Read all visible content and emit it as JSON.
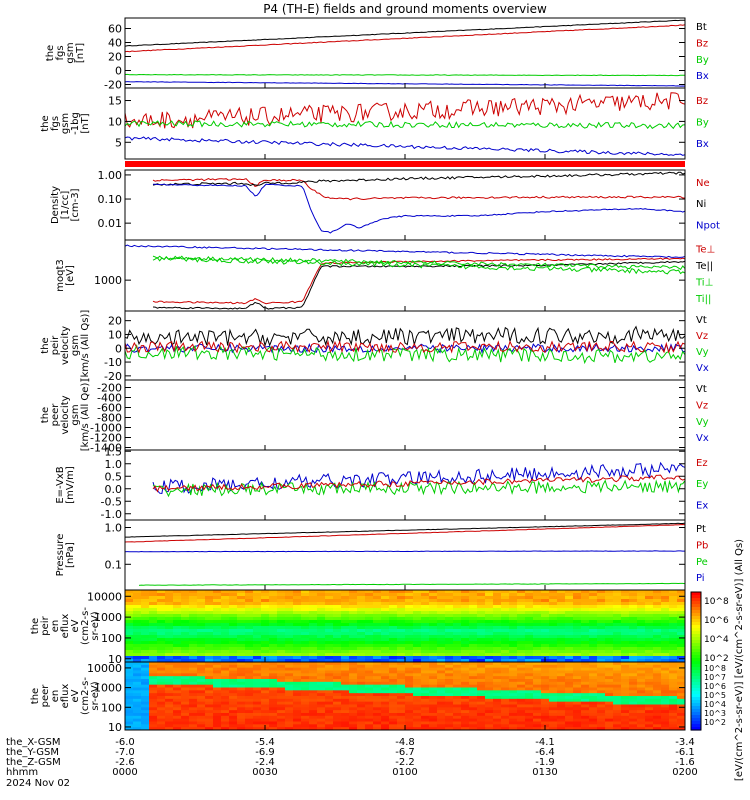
{
  "title": "P4 (TH-E) fields and ground moments overview",
  "chart_data": [
    {
      "type": "line",
      "ylabel_lines": [
        "the",
        "fgs",
        "gsm",
        "[nT]"
      ],
      "ylim": [
        -25,
        75
      ],
      "log": false,
      "yticks": [
        -20,
        0,
        20,
        40,
        60
      ],
      "legend": [
        "Bt",
        "Bz",
        "By",
        "Bx"
      ],
      "legend_colors": [
        "#000000",
        "#cc0000",
        "#00cc00",
        "#0000cc"
      ],
      "series": [
        {
          "name": "Bt",
          "color": "#000000",
          "x_start_hhmm": "0000",
          "x_end_hhmm": "0200",
          "start": 35,
          "end": 72,
          "noise": 0.4
        },
        {
          "name": "Bz",
          "color": "#cc0000",
          "x_start_hhmm": "0000",
          "x_end_hhmm": "0200",
          "start": 27,
          "end": 65,
          "noise": 0.5
        },
        {
          "name": "By",
          "color": "#00cc00",
          "x_start_hhmm": "0000",
          "x_end_hhmm": "0200",
          "start": -6,
          "end": -7,
          "noise": 0.4
        },
        {
          "name": "Bx",
          "color": "#0000cc",
          "x_start_hhmm": "0000",
          "x_end_hhmm": "0200",
          "start": -16,
          "end": -22,
          "noise": 0.3
        }
      ]
    },
    {
      "type": "line",
      "ylabel_lines": [
        "the",
        "fgs",
        "gsm",
        "-1bg",
        "[nT]"
      ],
      "ylim": [
        1,
        18
      ],
      "log": false,
      "yticks": [
        5,
        10,
        15
      ],
      "legend": [
        "Bz",
        "By",
        "Bx"
      ],
      "legend_colors": [
        "#cc0000",
        "#00cc00",
        "#0000cc"
      ],
      "series": [
        {
          "name": "Bz",
          "color": "#cc0000",
          "x_start_hhmm": "0000",
          "x_end_hhmm": "0200",
          "start": 10,
          "end": 15,
          "noise": 2.2
        },
        {
          "name": "By",
          "color": "#00cc00",
          "x_start_hhmm": "0000",
          "x_end_hhmm": "0200",
          "start": 9.5,
          "end": 9,
          "noise": 0.7
        },
        {
          "name": "Bx",
          "color": "#0000cc",
          "x_start_hhmm": "0000",
          "x_end_hhmm": "0200",
          "start": 6,
          "end": 2,
          "noise": 0.4
        }
      ]
    },
    {
      "type": "line",
      "ylabel_lines": [
        "Density",
        "[1/cc]",
        "[cm-3]"
      ],
      "ylim": [
        0.002,
        1.6
      ],
      "log": true,
      "yticks": [
        0.01,
        0.1,
        1.0
      ],
      "ytick_labels": [
        "0.01",
        "0.10",
        "1.00"
      ],
      "legend": [
        "Ne",
        "Ni",
        "Npot"
      ],
      "legend_colors": [
        "#cc0000",
        "#000000",
        "#0000cc"
      ],
      "series": [
        {
          "name": "Ne",
          "color": "#cc0000",
          "points": [
            [
              "0006",
              0.6
            ],
            [
              "0020",
              0.65
            ],
            [
              "0026",
              0.65
            ],
            [
              "0028",
              0.35
            ],
            [
              "0030",
              0.6
            ],
            [
              "0038",
              0.6
            ],
            [
              "0040",
              0.25
            ],
            [
              "0043",
              0.12
            ],
            [
              "0046",
              0.1
            ],
            [
              "0100",
              0.11
            ],
            [
              "0130",
              0.12
            ],
            [
              "0200",
              0.12
            ]
          ],
          "noise": 0.08
        },
        {
          "name": "Ni",
          "color": "#000000",
          "points": [
            [
              "0006",
              0.4
            ],
            [
              "0026",
              0.45
            ],
            [
              "0028",
              0.35
            ],
            [
              "0030",
              0.45
            ],
            [
              "0038",
              0.5
            ],
            [
              "0042",
              0.55
            ],
            [
              "0100",
              0.7
            ],
            [
              "0130",
              0.9
            ],
            [
              "0200",
              1.2
            ]
          ],
          "noise": 0.1
        },
        {
          "name": "Npot",
          "color": "#0000cc",
          "points": [
            [
              "0006",
              0.4
            ],
            [
              "0026",
              0.35
            ],
            [
              "0028",
              0.12
            ],
            [
              "0030",
              0.4
            ],
            [
              "0038",
              0.35
            ],
            [
              "0040",
              0.03
            ],
            [
              "0042",
              0.005
            ],
            [
              "0044",
              0.004
            ],
            [
              "0048",
              0.01
            ],
            [
              "0050",
              0.006
            ],
            [
              "0055",
              0.015
            ],
            [
              "0100",
              0.02
            ],
            [
              "0115",
              0.02
            ],
            [
              "0130",
              0.03
            ],
            [
              "0150",
              0.04
            ],
            [
              "0200",
              0.03
            ]
          ],
          "noise": 0.05
        }
      ]
    },
    {
      "type": "line",
      "ylabel_lines": [
        "moqt3",
        "[eV]"
      ],
      "ylim": [
        100,
        20000
      ],
      "log": true,
      "yticks": [
        1000
      ],
      "ytick_labels": [
        "1000"
      ],
      "legend": [
        "Te⊥",
        "Te||",
        "Ti⊥",
        "Ti||"
      ],
      "legend_colors": [
        "#cc0000",
        "#000000",
        "#00cc00",
        "#00cc00"
      ],
      "series": [
        {
          "name": "Te⊥",
          "color": "#cc0000",
          "points": [
            [
              "0006",
              200
            ],
            [
              "0026",
              180
            ],
            [
              "0028",
              250
            ],
            [
              "0030",
              180
            ],
            [
              "0038",
              200
            ],
            [
              "0042",
              3500
            ],
            [
              "0100",
              4000
            ],
            [
              "0130",
              4500
            ],
            [
              "0200",
              5000
            ]
          ],
          "noise": 0.05
        },
        {
          "name": "Te||",
          "color": "#000000",
          "points": [
            [
              "0006",
              130
            ],
            [
              "0026",
              120
            ],
            [
              "0028",
              200
            ],
            [
              "0030",
              120
            ],
            [
              "0038",
              130
            ],
            [
              "0042",
              2800
            ],
            [
              "0100",
              2800
            ],
            [
              "0130",
              3000
            ],
            [
              "0200",
              4000
            ]
          ],
          "noise": 0.05
        },
        {
          "name": "Ti⊥",
          "color": "#00cc00",
          "x_start_hhmm": "0006",
          "x_end_hhmm": "0200",
          "start": 5500,
          "end": 2500,
          "noise": 0.12
        },
        {
          "name": "Ti||",
          "color": "#00cc00",
          "x_start_hhmm": "0006",
          "x_end_hhmm": "0200",
          "start": 5000,
          "end": 1800,
          "noise": 0.15
        },
        {
          "name": "Npot",
          "color": "#0000cc",
          "x_start_hhmm": "0000",
          "x_end_hhmm": "0200",
          "start": 13000,
          "end": 5500,
          "noise": 0.05
        }
      ]
    },
    {
      "type": "line",
      "ylabel_lines": [
        "the",
        "peir",
        "velocity",
        "gsm",
        "[km/s (All Qs)]"
      ],
      "ylim": [
        -23,
        27
      ],
      "log": false,
      "yticks": [
        -20,
        -10,
        0,
        10,
        20
      ],
      "legend": [
        "Vt",
        "Vz",
        "Vy",
        "Vx"
      ],
      "legend_colors": [
        "#000000",
        "#cc0000",
        "#00cc00",
        "#0000cc"
      ],
      "series": [
        {
          "name": "Vt",
          "color": "#000000",
          "x_start_hhmm": "0000",
          "x_end_hhmm": "0200",
          "start": 7,
          "end": 10,
          "noise": 6
        },
        {
          "name": "Vx",
          "color": "#0000cc",
          "x_start_hhmm": "0000",
          "x_end_hhmm": "0200",
          "start": 0,
          "end": 0,
          "noise": 3
        },
        {
          "name": "Vy",
          "color": "#00cc00",
          "x_start_hhmm": "0000",
          "x_end_hhmm": "0200",
          "start": -3,
          "end": -6,
          "noise": 5
        },
        {
          "name": "Vz",
          "color": "#cc0000",
          "x_start_hhmm": "0000",
          "x_end_hhmm": "0200",
          "start": 1,
          "end": 1,
          "noise": 4
        }
      ]
    },
    {
      "type": "line",
      "ylabel_lines": [
        "the",
        "peer",
        "velocity",
        "gsm",
        "[km/s (All Qe)]"
      ],
      "ylim": [
        -1450,
        -50
      ],
      "log": false,
      "yticks": [
        -1400,
        -1200,
        -1000,
        -800,
        -600,
        -400,
        -200
      ],
      "legend": [
        "Vt",
        "Vz",
        "Vy",
        "Vx"
      ],
      "legend_colors": [
        "#000000",
        "#cc0000",
        "#00cc00",
        "#0000cc"
      ],
      "series": []
    },
    {
      "type": "line",
      "ylabel_lines": [
        "E=-VxB",
        "[mV/m]"
      ],
      "ylim": [
        -1.25,
        1.55
      ],
      "log": false,
      "yticks": [
        -1.0,
        -0.5,
        0.0,
        0.5,
        1.0,
        1.5
      ],
      "ytick_labels": [
        "-1.0",
        "-0.5",
        "0.0",
        "0.5",
        "1.0",
        "1.5"
      ],
      "legend": [
        "Ez",
        "Ey",
        "Ex"
      ],
      "legend_colors": [
        "#cc0000",
        "#00cc00",
        "#0000cc"
      ],
      "series": [
        {
          "name": "Ex",
          "color": "#0000cc",
          "x_start_hhmm": "0006",
          "x_end_hhmm": "0200",
          "start": 0.05,
          "end": 0.8,
          "noise": 0.3
        },
        {
          "name": "Ey",
          "color": "#00cc00",
          "x_start_hhmm": "0006",
          "x_end_hhmm": "0200",
          "start": -0.05,
          "end": 0.1,
          "noise": 0.25
        },
        {
          "name": "Ez",
          "color": "#cc0000",
          "x_start_hhmm": "0006",
          "x_end_hhmm": "0200",
          "start": 0.0,
          "end": 0.45,
          "noise": 0.12
        }
      ]
    },
    {
      "type": "line",
      "ylabel_lines": [
        "Pressure",
        "[nPa]"
      ],
      "ylim": [
        0.02,
        1.6
      ],
      "log": true,
      "yticks": [
        0.1,
        1.0
      ],
      "ytick_labels": [
        "0.1",
        "1.0"
      ],
      "legend": [
        "Pt",
        "Pb",
        "Pe",
        "Pi"
      ],
      "legend_colors": [
        "#000000",
        "#cc0000",
        "#00cc00",
        "#0000cc"
      ],
      "series": [
        {
          "name": "Pt",
          "color": "#000000",
          "x_start_hhmm": "0000",
          "x_end_hhmm": "0200",
          "start": 0.55,
          "end": 1.3,
          "noise": 0.01
        },
        {
          "name": "Pb",
          "color": "#cc0000",
          "x_start_hhmm": "0000",
          "x_end_hhmm": "0200",
          "start": 0.4,
          "end": 1.2,
          "noise": 0.01
        },
        {
          "name": "Pi",
          "color": "#0000cc",
          "x_start_hhmm": "0000",
          "x_end_hhmm": "0200",
          "start": 0.22,
          "end": 0.23,
          "noise": 0.01
        },
        {
          "name": "Pe",
          "color": "#00cc00",
          "x_start_hhmm": "0003",
          "x_end_hhmm": "0200",
          "start": 0.027,
          "end": 0.03,
          "noise": 0.01
        }
      ]
    },
    {
      "type": "heatmap",
      "ylabel_lines": [
        "the",
        "peir",
        "en",
        "eflux",
        "eV",
        "(cm2-s-",
        "sr-eV)"
      ],
      "ylim": [
        7,
        20000
      ],
      "log": true,
      "yticks": [
        10,
        100,
        1000,
        10000
      ],
      "ytick_labels": [
        "10",
        "100",
        "1000",
        "10000"
      ],
      "description_bands": "ions: green/cyan core near 100-3000 eV, yellow/orange above, bluer at low energy"
    },
    {
      "type": "heatmap",
      "ylabel_lines": [
        "the",
        "peer",
        "en",
        "eflux",
        "eV",
        "(cm2-s-",
        "sr-eV)"
      ],
      "ylim": [
        7,
        20000
      ],
      "log": true,
      "yticks": [
        10,
        100,
        1000,
        10000
      ],
      "ytick_labels": [
        "10",
        "100",
        "1000",
        "10000"
      ],
      "description_bands": "electrons: orange/red high flux, green band descending from ~5000 to ~200 eV"
    }
  ],
  "colorbar": {
    "label": "[eV/(cm^2-s-sr-eV)] [eV/(cm^2-s-sr-eV)] (All Qs)",
    "ticks_top": [
      "10^8",
      "10^6",
      "10^4",
      "10^2"
    ],
    "ticks_bottom": [
      "10^8",
      "10^7",
      "10^6",
      "10^5",
      "10^4",
      "10^3",
      "10^2"
    ]
  },
  "x_axis": {
    "start_hhmm": "0000",
    "end_hhmm": "0200",
    "tick_labels": [
      "0000",
      "0030",
      "0100",
      "0130",
      "0200"
    ],
    "rows": [
      {
        "label": "the_X-GSM",
        "values": [
          "-6.0",
          "-5.4",
          "-4.8",
          "-4.1",
          "-3.4"
        ]
      },
      {
        "label": "the_Y-GSM",
        "values": [
          "-7.0",
          "-6.9",
          "-6.7",
          "-6.4",
          "-6.1"
        ]
      },
      {
        "label": "the_Z-GSM",
        "values": [
          "-2.6",
          "-2.4",
          "-2.2",
          "-1.9",
          "-1.6"
        ]
      },
      {
        "label": "hhmm",
        "values": [
          "0000",
          "0030",
          "0100",
          "0130",
          "0200"
        ]
      }
    ],
    "date": "2024 Nov 02"
  },
  "colors": {
    "black": "#000000",
    "red": "#cc0000",
    "green": "#00cc00",
    "blue": "#0000cc"
  }
}
